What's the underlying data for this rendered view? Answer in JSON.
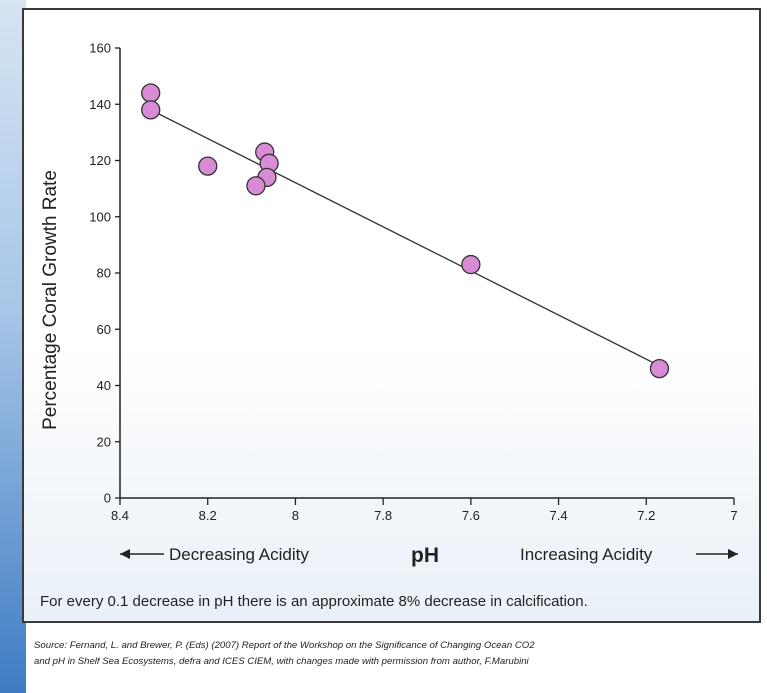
{
  "chart_data": {
    "type": "scatter",
    "title": "",
    "xlabel": "pH",
    "ylabel": "Percentage Coral Growth Rate",
    "xlim": [
      8.4,
      7
    ],
    "ylim": [
      0,
      160
    ],
    "x_reversed": true,
    "xticks": [
      "8.4",
      "8.2",
      "8",
      "7.8",
      "7.6",
      "7.4",
      "7.2",
      "7"
    ],
    "yticks": [
      "0",
      "20",
      "40",
      "60",
      "80",
      "100",
      "120",
      "140",
      "160"
    ],
    "grid": false,
    "points": [
      {
        "x": 8.33,
        "y": 144
      },
      {
        "x": 8.33,
        "y": 138
      },
      {
        "x": 8.2,
        "y": 118
      },
      {
        "x": 8.07,
        "y": 123
      },
      {
        "x": 8.06,
        "y": 119
      },
      {
        "x": 8.065,
        "y": 114
      },
      {
        "x": 8.09,
        "y": 111
      },
      {
        "x": 7.6,
        "y": 83
      },
      {
        "x": 7.17,
        "y": 46
      }
    ],
    "trendline": {
      "x": [
        8.33,
        7.17
      ],
      "y": [
        138,
        47
      ]
    },
    "point_color": "#d98bd6",
    "point_edge_color": "#333333",
    "arrow_left_label": "Decreasing Acidity",
    "arrow_right_label": "Increasing Acidity"
  },
  "caption": "For every 0.1 decrease in pH there is an approximate 8% decrease in calcification.",
  "source_line1": "Source: Fernand, L. and Brewer, P. (Eds) (2007) Report of the Workshop on the Significance of Changing Ocean CO2",
  "source_line2": "and pH in Shelf Sea Ecosystems, defra and ICES CIEM, with changes made with permission from author, F.Marubini"
}
